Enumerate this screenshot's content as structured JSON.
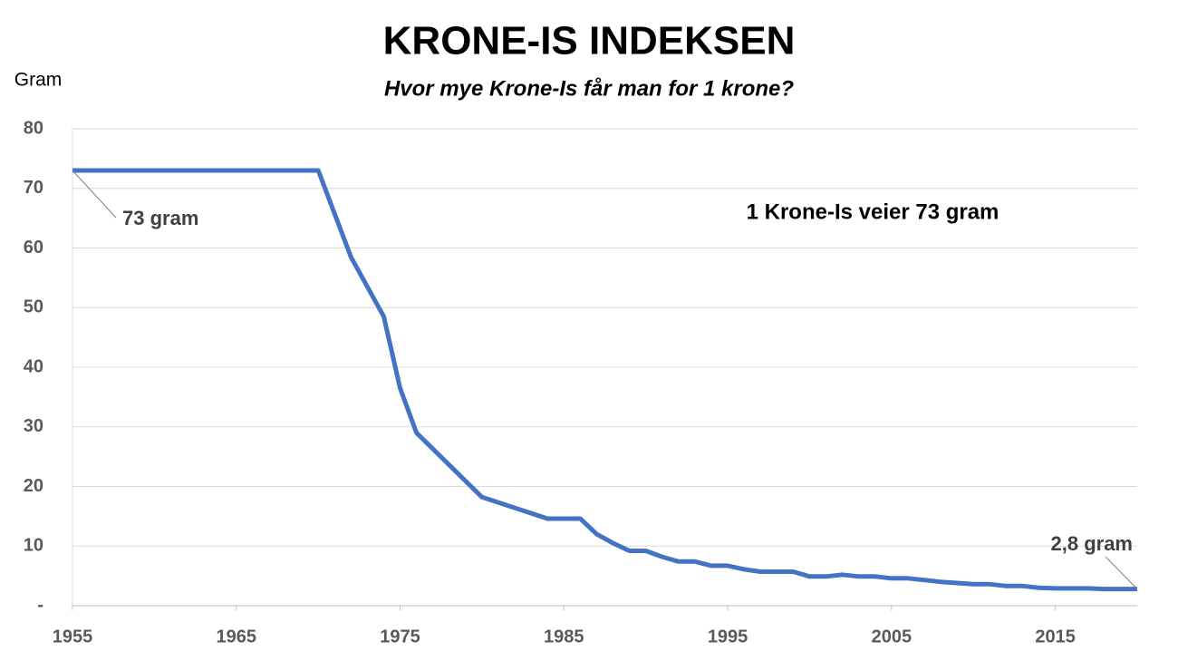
{
  "chart_data": {
    "type": "line",
    "title": "KRONE-IS INDEKSEN",
    "subtitle": "Hvor mye Krone-Is får man for 1 krone?",
    "y_label": "Gram",
    "annotations": [
      "73 gram",
      "2,8 gram",
      "1 Krone-Is veier 73 gram"
    ],
    "x": [
      1955,
      1970,
      1972,
      1974,
      1975,
      1976,
      1980,
      1984,
      1986,
      1987,
      1988,
      1989,
      1990,
      1991,
      1992,
      1993,
      1994,
      1995,
      1996,
      1997,
      1998,
      1999,
      2000,
      2001,
      2002,
      2003,
      2004,
      2005,
      2006,
      2007,
      2008,
      2009,
      2010,
      2011,
      2012,
      2013,
      2014,
      2015,
      2016,
      2017,
      2018,
      2019,
      2020
    ],
    "values": [
      73,
      73,
      58.5,
      48.5,
      36.5,
      29,
      18.2,
      14.6,
      14.6,
      12,
      10.5,
      9.2,
      9.2,
      8.2,
      7.4,
      7.4,
      6.7,
      6.7,
      6.1,
      5.7,
      5.7,
      5.7,
      4.9,
      4.9,
      5.2,
      4.9,
      4.9,
      4.6,
      4.6,
      4.3,
      4.0,
      3.8,
      3.6,
      3.6,
      3.3,
      3.3,
      3.0,
      2.9,
      2.9,
      2.9,
      2.8,
      2.8,
      2.8
    ],
    "color": "#4472c4",
    "xlim": [
      1955,
      2020
    ],
    "xticks": [
      1955,
      1965,
      1975,
      1985,
      1995,
      2005,
      2015
    ],
    "ylim": [
      0,
      80
    ],
    "yticks": [
      {
        "value": 0,
        "label": "-"
      },
      10,
      20,
      30,
      40,
      50,
      60,
      70,
      80
    ],
    "grid": true
  }
}
